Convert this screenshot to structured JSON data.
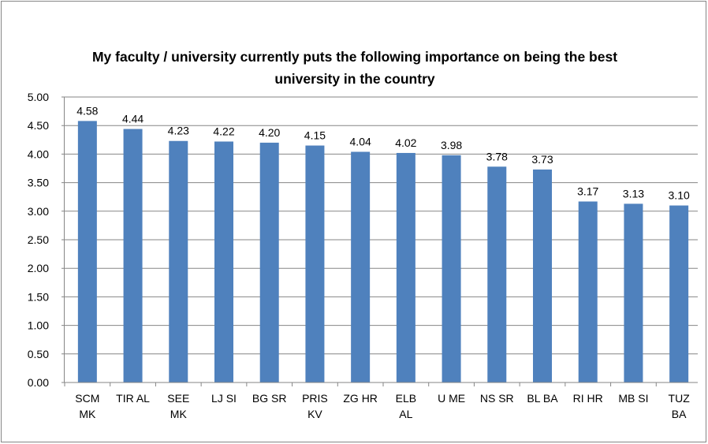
{
  "chart_data": {
    "type": "bar",
    "title": "My faculty / university currently puts the following importance on being the best university in the country",
    "categories": [
      "SCM MK",
      "TIR AL",
      "SEE MK",
      "LJ SI",
      "BG SR",
      "PRIS KV",
      "ZG HR",
      "ELB AL",
      "U ME",
      "NS SR",
      "BL BA",
      "RI HR",
      "MB SI",
      "TUZ BA"
    ],
    "values": [
      4.58,
      4.44,
      4.23,
      4.22,
      4.2,
      4.15,
      4.04,
      4.02,
      3.98,
      3.78,
      3.73,
      3.17,
      3.13,
      3.1
    ],
    "value_labels": [
      "4.58",
      "4.44",
      "4.23",
      "4.22",
      "4.20",
      "4.15",
      "4.04",
      "4.02",
      "3.98",
      "3.78",
      "3.73",
      "3.17",
      "3.13",
      "3.10"
    ],
    "color": "#4f81bd",
    "ylim": [
      0,
      5
    ],
    "yticks": [
      {
        "value": 0,
        "label": "0.00"
      },
      {
        "value": 0.5,
        "label": "0.50"
      },
      {
        "value": 1,
        "label": "1.00"
      },
      {
        "value": 1.5,
        "label": "1.50"
      },
      {
        "value": 2,
        "label": "2.00"
      },
      {
        "value": 2.5,
        "label": "2.50"
      },
      {
        "value": 3,
        "label": "3.00"
      },
      {
        "value": 3.5,
        "label": "3.50"
      },
      {
        "value": 4,
        "label": "4.00"
      },
      {
        "value": 4.5,
        "label": "4.50"
      },
      {
        "value": 5,
        "label": "5.00"
      }
    ],
    "grid": true
  }
}
